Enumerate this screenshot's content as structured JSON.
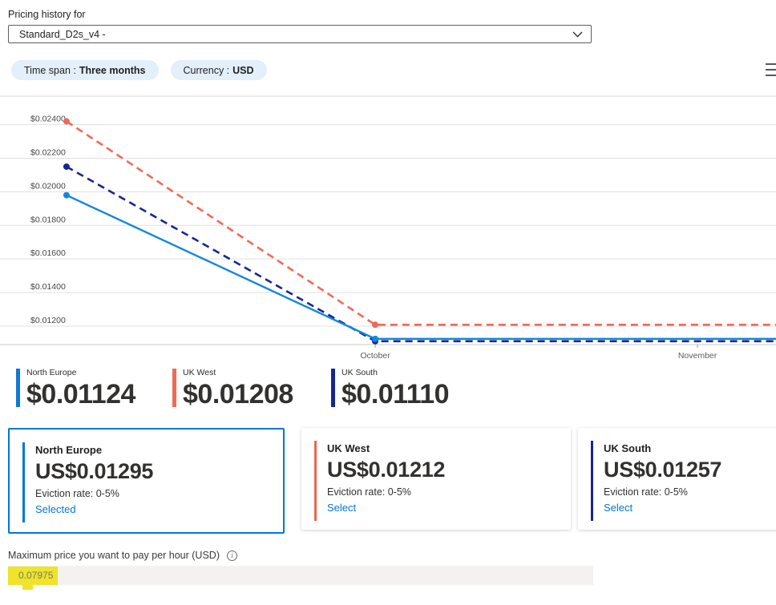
{
  "header": {
    "label": "Pricing history for",
    "vm_size": "Standard_D2s_v4 -"
  },
  "filters": {
    "time_span_label": "Time span :",
    "time_span_value": "Three months",
    "currency_label": "Currency :",
    "currency_value": "USD"
  },
  "icons": {
    "menu": "hamburger-menu-icon",
    "dropdown": "chevron-down-icon",
    "info": "info-icon"
  },
  "chart_data": {
    "type": "line",
    "grid": true,
    "legend_position": "bottom",
    "y_axis_currency": "USD",
    "y_ticks": [
      {
        "label": "$0.02400",
        "value": 0.024
      },
      {
        "label": "$0.02200",
        "value": 0.022
      },
      {
        "label": "$0.02000",
        "value": 0.02
      },
      {
        "label": "$0.01800",
        "value": 0.018
      },
      {
        "label": "$0.01600",
        "value": 0.016
      },
      {
        "label": "$0.01400",
        "value": 0.014
      },
      {
        "label": "$0.01200",
        "value": 0.012
      }
    ],
    "y_range": [
      0.0109,
      0.0257
    ],
    "x_labels": [
      {
        "label": "October",
        "pos": 0.4835
      },
      {
        "label": "November",
        "pos": 0.8988
      }
    ],
    "series": [
      {
        "name": "UK West",
        "color": "#ef6a55",
        "dash": true,
        "points": [
          {
            "x": 0.0857,
            "y": 0.0242
          },
          {
            "x": 0.4835,
            "y": 0.01208
          },
          {
            "x": 1.0,
            "y": 0.01208
          }
        ]
      },
      {
        "name": "UK South",
        "color": "#17278f",
        "dash": true,
        "points": [
          {
            "x": 0.0857,
            "y": 0.0215
          },
          {
            "x": 0.4835,
            "y": 0.0111
          },
          {
            "x": 1.0,
            "y": 0.0111
          }
        ]
      },
      {
        "name": "North Europe",
        "color": "#1287dc",
        "dash": false,
        "points": [
          {
            "x": 0.0857,
            "y": 0.0198
          },
          {
            "x": 0.4835,
            "y": 0.01124
          },
          {
            "x": 1.0,
            "y": 0.01124
          }
        ]
      }
    ]
  },
  "legend": {
    "items": [
      {
        "name": "North Europe",
        "value": "$0.01124",
        "color": "#1279d2"
      },
      {
        "name": "UK West",
        "value": "$0.01208",
        "color": "#ef6a55"
      },
      {
        "name": "UK South",
        "value": "$0.01110",
        "color": "#17278f"
      }
    ]
  },
  "region_cards": [
    {
      "name": "North Europe",
      "price": "US$0.01295",
      "eviction": "Eviction rate: 0-5%",
      "action": "Selected",
      "selected": true,
      "accent": "#0078d4"
    },
    {
      "name": "UK West",
      "price": "US$0.01212",
      "eviction": "Eviction rate: 0-5%",
      "action": "Select",
      "selected": false,
      "accent": "#e8694f"
    },
    {
      "name": "UK South",
      "price": "US$0.01257",
      "eviction": "Eviction rate: 0-5%",
      "action": "Select",
      "selected": false,
      "accent": "#17278f"
    }
  ],
  "max_price": {
    "label": "Maximum price you want to pay per hour (USD)",
    "value": "0.07975",
    "highlight_color": "#efe32b"
  }
}
